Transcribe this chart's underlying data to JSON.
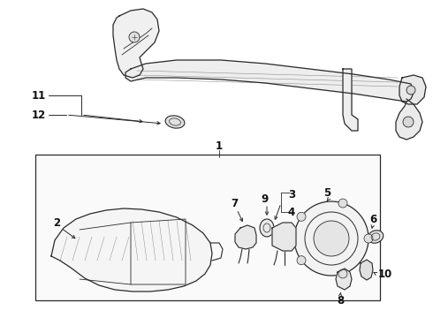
{
  "bg_color": "#ffffff",
  "line_color": "#2a2a2a",
  "text_color": "#111111",
  "figure_width": 4.9,
  "figure_height": 3.6,
  "dpi": 100
}
